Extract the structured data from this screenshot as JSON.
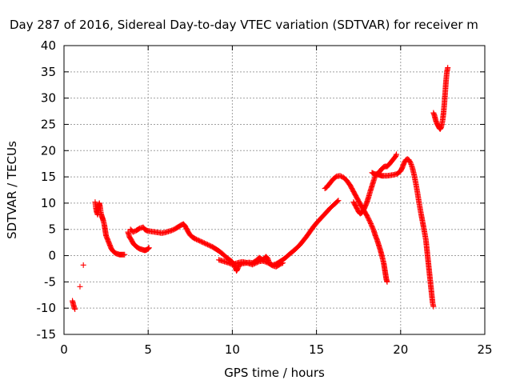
{
  "chart_data": {
    "type": "scatter",
    "title": "Day 287 of 2016, Sidereal Day-to-day VTEC variation (SDTVAR) for receiver m",
    "xlabel": "GPS time / hours",
    "ylabel": "SDTVAR / TECUs",
    "xlim": [
      0,
      25
    ],
    "ylim": [
      -15,
      40
    ],
    "xticks": [
      0,
      5,
      10,
      15,
      20,
      25
    ],
    "yticks": [
      -15,
      -10,
      -5,
      0,
      5,
      10,
      15,
      20,
      25,
      30,
      35,
      40
    ],
    "grid": true,
    "marker": "+",
    "color": "#ff0000",
    "series": [
      {
        "segments": [
          [
            [
              0.5,
              -8.6
            ],
            [
              0.55,
              -9.2
            ],
            [
              0.6,
              -9.8
            ],
            [
              0.65,
              -10.2
            ]
          ],
          [
            [
              0.95,
              -5.9
            ]
          ],
          [
            [
              1.15,
              -1.8
            ]
          ],
          [
            [
              1.85,
              10.2
            ],
            [
              1.9,
              9.0
            ],
            [
              1.95,
              8.2
            ],
            [
              2.0,
              7.8
            ],
            [
              2.05,
              9.5
            ],
            [
              2.1,
              10.0
            ],
            [
              2.15,
              9.2
            ],
            [
              2.2,
              8.0
            ],
            [
              2.25,
              7.5
            ],
            [
              2.3,
              7.0
            ],
            [
              2.35,
              6.5
            ],
            [
              2.4,
              5.8
            ],
            [
              2.45,
              4.8
            ],
            [
              2.5,
              3.8
            ],
            [
              2.6,
              3.0
            ],
            [
              2.7,
              2.2
            ],
            [
              2.8,
              1.4
            ],
            [
              2.9,
              0.9
            ],
            [
              3.0,
              0.6
            ],
            [
              3.1,
              0.4
            ],
            [
              3.2,
              0.3
            ],
            [
              3.3,
              0.2
            ],
            [
              3.4,
              0.2
            ],
            [
              3.5,
              0.2
            ],
            [
              3.6,
              0.2
            ]
          ],
          [
            [
              3.8,
              4.5
            ],
            [
              3.9,
              3.5
            ],
            [
              4.0,
              3.0
            ],
            [
              4.1,
              2.4
            ],
            [
              4.2,
              2.0
            ],
            [
              4.3,
              1.7
            ],
            [
              4.4,
              1.5
            ],
            [
              4.5,
              1.3
            ],
            [
              4.6,
              1.2
            ],
            [
              4.7,
              1.1
            ],
            [
              4.8,
              1.0
            ],
            [
              4.9,
              1.1
            ],
            [
              5.0,
              1.3
            ],
            [
              5.05,
              1.5
            ]
          ],
          [
            [
              3.95,
              5.0
            ],
            [
              4.1,
              4.5
            ],
            [
              4.3,
              4.8
            ],
            [
              4.5,
              5.2
            ],
            [
              4.7,
              5.4
            ],
            [
              4.8,
              5.0
            ],
            [
              4.9,
              4.8
            ],
            [
              5.0,
              4.7
            ],
            [
              5.2,
              4.6
            ],
            [
              5.4,
              4.5
            ],
            [
              5.6,
              4.4
            ],
            [
              5.8,
              4.3
            ],
            [
              6.0,
              4.4
            ],
            [
              6.2,
              4.6
            ],
            [
              6.4,
              4.8
            ],
            [
              6.6,
              5.1
            ],
            [
              6.8,
              5.5
            ],
            [
              7.0,
              5.9
            ],
            [
              7.1,
              6.0
            ],
            [
              7.2,
              5.6
            ],
            [
              7.3,
              5.0
            ],
            [
              7.4,
              4.4
            ],
            [
              7.5,
              3.9
            ],
            [
              7.6,
              3.6
            ],
            [
              7.7,
              3.4
            ],
            [
              7.8,
              3.2
            ],
            [
              8.0,
              2.9
            ],
            [
              8.2,
              2.6
            ],
            [
              8.4,
              2.3
            ],
            [
              8.6,
              2.0
            ],
            [
              8.8,
              1.7
            ],
            [
              9.0,
              1.3
            ],
            [
              9.2,
              0.9
            ],
            [
              9.4,
              0.4
            ],
            [
              9.6,
              -0.2
            ],
            [
              9.8,
              -0.7
            ],
            [
              10.0,
              -1.2
            ],
            [
              10.1,
              -1.8
            ],
            [
              10.2,
              -2.4
            ],
            [
              10.25,
              -2.9
            ],
            [
              10.3,
              -2.6
            ],
            [
              10.4,
              -1.8
            ],
            [
              10.6,
              -1.5
            ],
            [
              10.8,
              -1.4
            ],
            [
              11.0,
              -1.3
            ],
            [
              11.2,
              -1.4
            ],
            [
              11.4,
              -1.0
            ],
            [
              11.6,
              -0.4
            ],
            [
              11.8,
              -0.8
            ],
            [
              12.0,
              -0.2
            ],
            [
              12.1,
              -0.5
            ],
            [
              12.2,
              -1.5
            ],
            [
              12.4,
              -1.8
            ],
            [
              12.6,
              -1.6
            ],
            [
              12.8,
              -1.2
            ],
            [
              13.0,
              -0.8
            ],
            [
              13.2,
              -0.3
            ],
            [
              13.4,
              0.3
            ],
            [
              13.6,
              0.8
            ],
            [
              13.8,
              1.4
            ],
            [
              14.0,
              2.0
            ],
            [
              14.2,
              2.8
            ],
            [
              14.4,
              3.6
            ],
            [
              14.6,
              4.5
            ],
            [
              14.8,
              5.4
            ],
            [
              15.0,
              6.2
            ],
            [
              15.2,
              6.9
            ],
            [
              15.4,
              7.6
            ],
            [
              15.6,
              8.3
            ],
            [
              15.8,
              9.0
            ],
            [
              16.0,
              9.6
            ],
            [
              16.2,
              10.2
            ],
            [
              16.3,
              10.5
            ]
          ],
          [
            [
              9.2,
              -0.8
            ],
            [
              9.4,
              -1.0
            ],
            [
              9.6,
              -1.2
            ],
            [
              9.8,
              -1.4
            ],
            [
              10.0,
              -1.7
            ],
            [
              10.2,
              -1.5
            ],
            [
              10.4,
              -1.3
            ],
            [
              10.6,
              -1.2
            ],
            [
              10.8,
              -1.3
            ],
            [
              11.0,
              -1.5
            ],
            [
              11.2,
              -1.7
            ],
            [
              11.4,
              -1.4
            ],
            [
              11.6,
              -1.1
            ],
            [
              11.8,
              -1.0
            ],
            [
              12.0,
              -1.2
            ],
            [
              12.2,
              -1.5
            ],
            [
              12.4,
              -1.9
            ],
            [
              12.6,
              -2.1
            ],
            [
              12.8,
              -1.7
            ],
            [
              13.0,
              -1.4
            ]
          ],
          [
            [
              15.5,
              12.8
            ],
            [
              15.6,
              13.0
            ],
            [
              15.8,
              13.8
            ],
            [
              16.0,
              14.6
            ],
            [
              16.2,
              15.1
            ],
            [
              16.4,
              15.2
            ],
            [
              16.6,
              14.9
            ],
            [
              16.8,
              14.3
            ],
            [
              17.0,
              13.4
            ],
            [
              17.2,
              12.2
            ],
            [
              17.4,
              11.0
            ],
            [
              17.6,
              9.8
            ],
            [
              17.8,
              8.7
            ],
            [
              18.0,
              7.6
            ],
            [
              18.2,
              6.3
            ],
            [
              18.4,
              4.8
            ],
            [
              18.5,
              3.8
            ],
            [
              18.6,
              3.0
            ],
            [
              18.7,
              2.0
            ],
            [
              18.8,
              1.0
            ],
            [
              18.9,
              -0.2
            ],
            [
              19.0,
              -1.5
            ],
            [
              19.05,
              -2.5
            ],
            [
              19.1,
              -3.5
            ],
            [
              19.15,
              -4.5
            ],
            [
              19.2,
              -5.0
            ]
          ],
          [
            [
              17.2,
              10.2
            ],
            [
              17.3,
              9.6
            ],
            [
              17.4,
              9.0
            ],
            [
              17.5,
              8.4
            ],
            [
              17.6,
              8.0
            ],
            [
              17.7,
              8.2
            ],
            [
              17.8,
              8.7
            ],
            [
              17.9,
              9.4
            ],
            [
              18.0,
              10.2
            ],
            [
              18.1,
              11.2
            ],
            [
              18.2,
              12.3
            ],
            [
              18.3,
              13.3
            ],
            [
              18.4,
              14.3
            ],
            [
              18.5,
              15.2
            ],
            [
              18.6,
              15.6
            ],
            [
              18.7,
              15.8
            ],
            [
              18.8,
              16.2
            ],
            [
              18.9,
              16.6
            ],
            [
              19.0,
              16.9
            ],
            [
              19.1,
              17.0
            ],
            [
              19.2,
              17.0
            ],
            [
              19.3,
              17.3
            ],
            [
              19.4,
              17.7
            ],
            [
              19.5,
              18.1
            ],
            [
              19.6,
              18.5
            ],
            [
              19.7,
              18.9
            ],
            [
              19.75,
              19.3
            ]
          ],
          [
            [
              18.3,
              15.8
            ],
            [
              18.4,
              15.6
            ],
            [
              18.5,
              15.5
            ],
            [
              18.6,
              15.5
            ],
            [
              18.7,
              15.4
            ],
            [
              18.8,
              15.3
            ],
            [
              18.9,
              15.2
            ],
            [
              19.0,
              15.2
            ],
            [
              19.2,
              15.2
            ],
            [
              19.4,
              15.3
            ],
            [
              19.6,
              15.4
            ],
            [
              19.8,
              15.6
            ],
            [
              20.0,
              16.1
            ],
            [
              20.1,
              16.8
            ],
            [
              20.2,
              17.6
            ],
            [
              20.3,
              18.2
            ],
            [
              20.4,
              18.4
            ],
            [
              20.5,
              18.2
            ],
            [
              20.6,
              17.6
            ],
            [
              20.7,
              16.7
            ],
            [
              20.8,
              15.4
            ],
            [
              20.9,
              13.8
            ],
            [
              21.0,
              12.0
            ],
            [
              21.1,
              10.0
            ],
            [
              21.2,
              8.2
            ],
            [
              21.3,
              6.5
            ],
            [
              21.4,
              4.8
            ],
            [
              21.5,
              3.0
            ],
            [
              21.55,
              1.5
            ],
            [
              21.6,
              0.0
            ],
            [
              21.65,
              -1.5
            ],
            [
              21.7,
              -3.0
            ],
            [
              21.75,
              -4.5
            ],
            [
              21.8,
              -6.0
            ],
            [
              21.85,
              -7.5
            ],
            [
              21.9,
              -9.0
            ],
            [
              21.95,
              -9.7
            ]
          ],
          [
            [
              21.95,
              27.2
            ],
            [
              22.0,
              26.8
            ],
            [
              22.05,
              26.2
            ],
            [
              22.1,
              25.6
            ],
            [
              22.15,
              25.2
            ],
            [
              22.2,
              24.9
            ],
            [
              22.25,
              24.6
            ],
            [
              22.3,
              24.3
            ],
            [
              22.35,
              24.1
            ],
            [
              22.4,
              24.4
            ],
            [
              22.45,
              25.0
            ],
            [
              22.5,
              25.9
            ],
            [
              22.55,
              27.2
            ],
            [
              22.6,
              29.0
            ],
            [
              22.65,
              31.2
            ],
            [
              22.7,
              33.4
            ],
            [
              22.75,
              35.0
            ],
            [
              22.8,
              35.8
            ]
          ]
        ]
      }
    ]
  }
}
